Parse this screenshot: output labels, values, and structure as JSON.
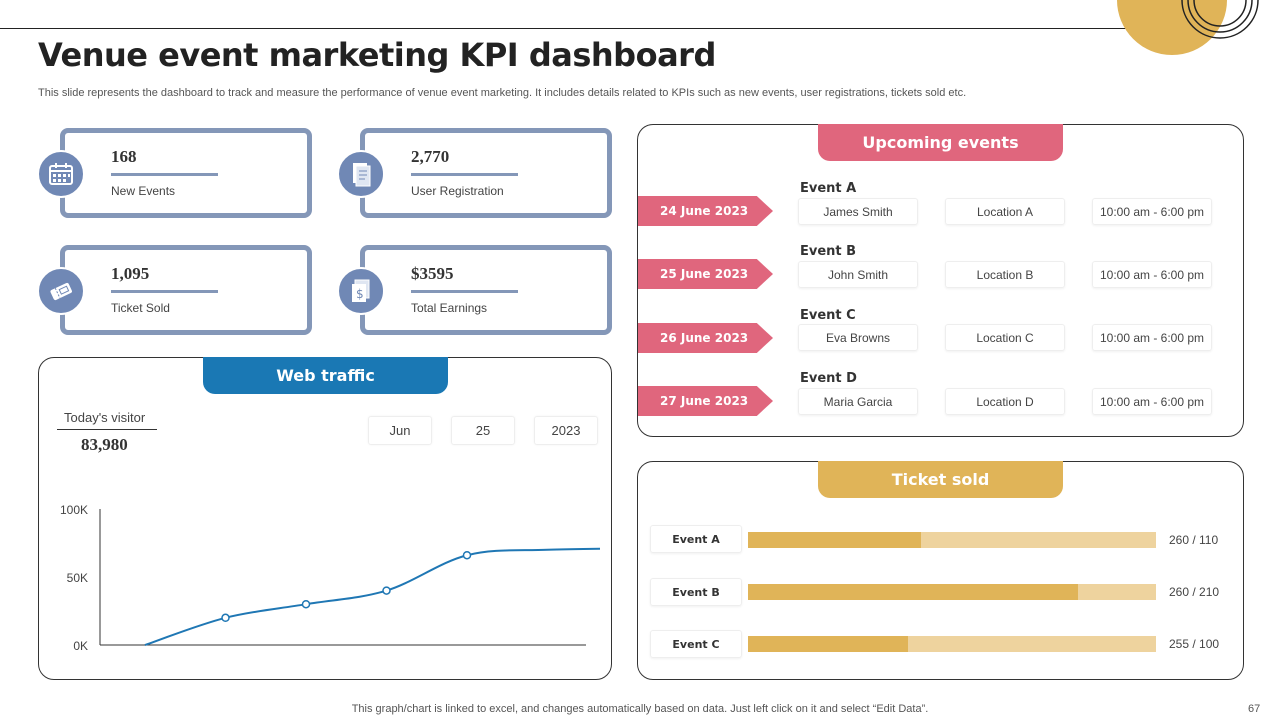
{
  "title": "Venue event marketing KPI dashboard",
  "subtitle": "This slide represents the dashboard to track and measure the performance of venue event marketing. It includes details related to KPIs such as new events, user registrations, tickets sold etc.",
  "kpis": [
    {
      "value": "168",
      "label": "New Events",
      "icon": "calendar-icon"
    },
    {
      "value": "2,770",
      "label": "User Registration",
      "icon": "registration-icon"
    },
    {
      "value": "1,095",
      "label": "Ticket Sold",
      "icon": "ticket-icon"
    },
    {
      "value": "$3595",
      "label": "Total Earnings",
      "icon": "earnings-icon"
    }
  ],
  "web_traffic": {
    "header": "Web traffic",
    "visitor_label": "Today's visitor",
    "visitor_value": "83,980",
    "date": {
      "month": "Jun",
      "day": "25",
      "year": "2023"
    }
  },
  "chart_data": {
    "type": "line",
    "title": "Web traffic",
    "x": [
      1,
      2,
      3,
      4,
      5,
      6,
      7
    ],
    "y": [
      0,
      20000,
      30000,
      40000,
      66000,
      70000,
      71000
    ],
    "markers": [
      false,
      true,
      true,
      true,
      true,
      false,
      false
    ],
    "yticks": [
      "100K",
      "50K",
      "0K"
    ],
    "ylim": [
      0,
      100000
    ],
    "line_color": "#1f77b4"
  },
  "upcoming": {
    "header": "Upcoming events",
    "events": [
      {
        "date": "24 June 2023",
        "name": "Event A",
        "person": "James Smith",
        "location": "Location A",
        "time": "10:00 am - 6:00 pm"
      },
      {
        "date": "25 June 2023",
        "name": "Event B",
        "person": "John Smith",
        "location": "Location B",
        "time": "10:00 am - 6:00 pm"
      },
      {
        "date": "26 June 2023",
        "name": "Event C",
        "person": "Eva Browns",
        "location": "Location C",
        "time": "10:00 am - 6:00 pm"
      },
      {
        "date": "27 June 2023",
        "name": "Event D",
        "person": "Maria Garcia",
        "location": "Location D",
        "time": "10:00 am - 6:00 pm"
      }
    ]
  },
  "ticket_sold": {
    "header": "Ticket sold",
    "rows": [
      {
        "name": "Event A",
        "total": 260,
        "sold": 110,
        "text": "260 / 110"
      },
      {
        "name": "Event B",
        "total": 260,
        "sold": 210,
        "text": "260 / 210"
      },
      {
        "name": "Event C",
        "total": 255,
        "sold": 100,
        "text": "255 / 100"
      }
    ]
  },
  "colors": {
    "kpi_border": "#8497b8",
    "web_header": "#1a78b4",
    "events_header": "#e0667d",
    "ticket_header": "#e0b458",
    "accent_gold": "#e0b458"
  },
  "footer": "This graph/chart is linked to excel, and changes automatically based on data. Just left click on it and select “Edit Data”.",
  "page_number": "67"
}
